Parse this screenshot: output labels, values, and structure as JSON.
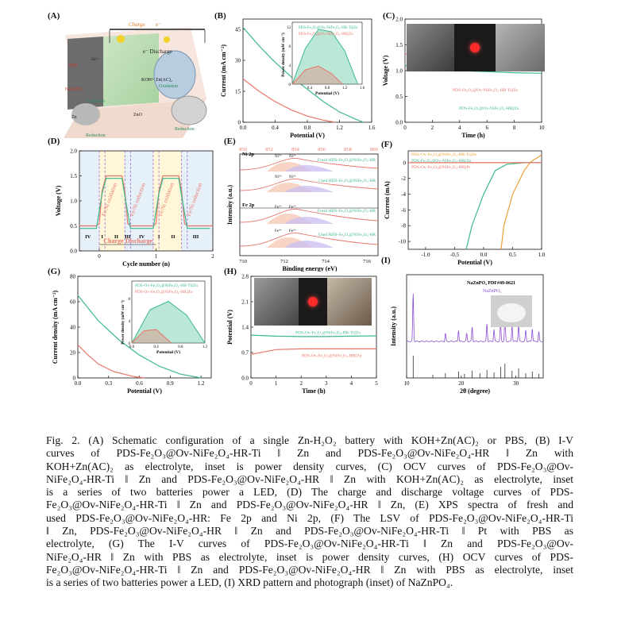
{
  "panels": {
    "A": {
      "label": "(A)",
      "texts": {
        "charge": "Charge",
        "charge_sym": "e⁻",
        "discharge_e": "e⁻ Discharge",
        "pbs": "PBS",
        "zn_ion": "Zn²⁺",
        "nazn": "NaZnPO₄",
        "electrolyte": "KOH+ Zn(AC)₂",
        "oxidation1": "Oxidation",
        "oxidation2": "Oxidation",
        "reduction1": "Reduction",
        "reduction2": "Reduction",
        "zn": "Zn",
        "zno": "ZnO"
      }
    },
    "B": {
      "label": "(B)",
      "legend": [
        "PDS-Fe₂O₃@Ov-NiFe₂O₄-HR-Ti||Zn",
        "PDS-Fe₂O₃@Ov-NiFe₂O₄-HR||Zn"
      ],
      "inset_ylabel": "Power density (mW cm⁻²)",
      "inset_xlabel": "Potential (V)"
    },
    "C": {
      "label": "(C)"
    },
    "D": {
      "label": "(D)",
      "annotations": [
        "Fe/Ni oxidation",
        "Fe/Ni reduction",
        "Fe/Ni oxidation",
        "Fe/Ni reduction"
      ],
      "stages": [
        "IV",
        "I",
        "II",
        "III",
        "IV",
        "I",
        "II",
        "III"
      ],
      "charge": "Charge",
      "discharge": "Discharge"
    },
    "E": {
      "label": "(E)",
      "ni_label": "Ni 2p",
      "fe_label": "Fe 2p",
      "ni_fresh": "Fresh HDS-Fe₂O₃@NiFe₂O₄-HR",
      "ni_used": "Used HDS-Fe₂O₃@NiFe₂O₄-HR",
      "fe_fresh": "Fresh HDS-Fe₂O₃@NiFe₂O₄-HR",
      "fe_used": "Used HDS-Fe₂O₃@NiFe₂O₄-HR",
      "peak_ni3": "Ni³⁺",
      "peak_ni2": "Ni²⁺",
      "peak_fe3": "Fe³⁺",
      "peak_fe2": "Fe²⁺",
      "top_ticks": [
        "850",
        "852",
        "854",
        "856",
        "858",
        "860"
      ],
      "bottom_ticks": [
        "710",
        "712",
        "714",
        "716"
      ],
      "xlabel": "Binding energy (eV)",
      "ylabel": "Intensity (a.u.)"
    },
    "F": {
      "label": "(F)",
      "legend": [
        "PDS-Ov-Fe₂O₃@NiFe₂O₄-HR-Ti||Zn",
        "PDS-Fe₂O₃@Ov-NiFe₂O₄-HR||Zn",
        "PDS-Ov-Fe₂O₃@NiFe₂O₄-HR||Pt"
      ]
    },
    "G": {
      "label": "(G)",
      "legend": [
        "PDS-Ov-Fe₂O₃@NiFe₂O₄-HR-Ti||Zn",
        "PDS-Ov-Fe₂O₃@NiFe₂O₄-HR||Zn"
      ],
      "inset_ylabel": "Power density (mW cm⁻²)",
      "inset_xlabel": "Potential (V)"
    },
    "H": {
      "label": "(H)",
      "curve_labels": [
        "PDS-Ov-Fe₂O₃@NiFe₂O₄-HR-Ti||Zn",
        "PDS-Ov-Fe₂O₃@NiFe₂O₄-HR||Zn"
      ]
    },
    "I": {
      "label": "(I)",
      "legend1": "NaZnPO₄ PDF#49-0621",
      "legend2": "NaZnPO₄"
    }
  },
  "chart_data": [
    {
      "id": "B",
      "type": "line",
      "xlabel": "Potential (V)",
      "ylabel": "Current (mA cm⁻²)",
      "xlim": [
        0.0,
        1.6
      ],
      "ylim": [
        0,
        50
      ],
      "xticks": [
        "0.0",
        "0.4",
        "0.8",
        "1.2",
        "1.6"
      ],
      "yticks": [
        "0",
        "15",
        "30",
        "45"
      ],
      "series": [
        {
          "name": "PDS-Fe₂O₃@Ov-NiFe₂O₄-HR-Ti||Zn",
          "color": "#3cb98a",
          "x": [
            0.0,
            0.2,
            0.4,
            0.6,
            0.8,
            1.0,
            1.2,
            1.4,
            1.5
          ],
          "y": [
            46,
            37,
            29,
            22,
            16,
            10,
            5,
            1.5,
            0
          ]
        },
        {
          "name": "PDS-Fe₂O₃@Ov-NiFe₂O₄-HR||Zn",
          "color": "#e8776b",
          "x": [
            0.0,
            0.2,
            0.4,
            0.6,
            0.8,
            1.0,
            1.15
          ],
          "y": [
            21,
            15,
            10,
            6,
            3,
            1,
            0
          ]
        }
      ]
    },
    {
      "id": "B-inset",
      "type": "area",
      "xlabel": "Potential (V)",
      "ylabel": "Power density (mW cm⁻²)",
      "xlim": [
        0,
        1.6
      ],
      "ylim": [
        0,
        13
      ],
      "xticks": [
        "0.4",
        "0.8",
        "1.2",
        "1.6"
      ],
      "yticks": [
        "0",
        "4",
        "8",
        "12"
      ],
      "series": [
        {
          "name": "HR-Ti",
          "color": "#3cb98a",
          "x": [
            0,
            0.3,
            0.6,
            0.9,
            1.2,
            1.5
          ],
          "y": [
            0,
            7.5,
            11.5,
            11,
            7,
            0
          ]
        },
        {
          "name": "HR",
          "color": "#e8776b",
          "x": [
            0,
            0.3,
            0.6,
            0.9,
            1.15
          ],
          "y": [
            0,
            3,
            3.8,
            2.2,
            0
          ]
        }
      ]
    },
    {
      "id": "C",
      "type": "line",
      "xlabel": "Time (h)",
      "ylabel": "Voltage (V)",
      "xlim": [
        0,
        10
      ],
      "ylim": [
        0,
        2.0
      ],
      "xticks": [
        "0",
        "2",
        "4",
        "6",
        "8",
        "10"
      ],
      "yticks": [
        "0.0",
        "0.5",
        "1.0",
        "1.5",
        "2.0"
      ],
      "series": [
        {
          "name": "PDS-Fe₂O₃@Ov-NiFe₂O₄-HR-Ti||Zn",
          "color": "#e8776b",
          "x": [
            0,
            2,
            4,
            6,
            8,
            10
          ],
          "y": [
            1.32,
            1.33,
            1.33,
            1.34,
            1.34,
            1.35
          ]
        },
        {
          "name": "PDS-Fe₂O₃@Ov-NiFe₂O₄-HR||Zn",
          "color": "#3cb98a",
          "x": [
            0,
            2,
            4,
            6,
            8,
            10
          ],
          "y": [
            1.1,
            1.05,
            1.0,
            0.98,
            0.96,
            0.95
          ]
        }
      ]
    },
    {
      "id": "D",
      "type": "line",
      "xlabel": "Cycle number (n)",
      "ylabel": "Voltage (V)",
      "xlim": [
        -0.35,
        2.0
      ],
      "ylim": [
        0.0,
        2.0
      ],
      "xticks": [
        "0",
        "1",
        "2"
      ],
      "yticks": [
        "0.0",
        "0.5",
        "1.0",
        "1.5",
        "2.0"
      ],
      "series": [
        {
          "name": "HR-Ti",
          "color": "#e8776b",
          "x": [
            -0.35,
            -0.05,
            0.0,
            0.05,
            0.12,
            0.4,
            0.45,
            0.5,
            0.55,
            0.62,
            0.9,
            0.95,
            1.0,
            1.05,
            1.12,
            1.4,
            1.45,
            1.5,
            1.55,
            1.62,
            1.9,
            1.95,
            2.0
          ],
          "y": [
            0.5,
            0.5,
            0.55,
            1.2,
            1.5,
            1.5,
            1.2,
            0.55,
            0.5,
            0.5,
            0.5,
            0.5,
            0.55,
            1.2,
            1.5,
            1.5,
            1.2,
            0.55,
            0.5,
            0.5,
            0.5,
            0.5,
            0.5
          ]
        },
        {
          "name": "HR",
          "color": "#3cb98a",
          "x": [
            -0.35,
            -0.05,
            0.05,
            0.12,
            0.4,
            0.45,
            0.55,
            0.9,
            0.95,
            1.05,
            1.12,
            1.4,
            1.45,
            1.55,
            1.95
          ],
          "y": [
            0.45,
            0.45,
            1.15,
            1.45,
            1.45,
            1.1,
            0.45,
            0.45,
            0.45,
            1.15,
            1.45,
            1.45,
            1.1,
            0.45,
            0.45
          ]
        }
      ]
    },
    {
      "id": "F",
      "type": "line",
      "xlabel": "Potential (V)",
      "ylabel": "Current (mA)",
      "xlim": [
        -1.3,
        1.0
      ],
      "ylim": [
        -11,
        1.5
      ],
      "xticks": [
        "-1.0",
        "-0.5",
        "0.0",
        "0.5",
        "1.0"
      ],
      "yticks": [
        "-10",
        "-8",
        "-6",
        "-4",
        "-2",
        "0"
      ],
      "series": [
        {
          "name": "PDS-Ov-Fe₂O₃@NiFe₂O₄-HR-Ti||Zn",
          "color": "#e8a13a",
          "x": [
            0.3,
            0.35,
            0.5,
            0.7,
            0.8,
            0.85,
            0.9,
            1.0
          ],
          "y": [
            -11,
            -8,
            -4,
            -1,
            0,
            0.3,
            0.5,
            1.0
          ]
        },
        {
          "name": "PDS-Fe₂O₃@Ov-NiFe₂O₄-HR||Zn",
          "color": "#3cb98a",
          "x": [
            -0.3,
            -0.2,
            0.0,
            0.2,
            0.4,
            0.7,
            1.0
          ],
          "y": [
            -11,
            -8,
            -4,
            -1,
            -0.2,
            0,
            0
          ]
        },
        {
          "name": "PDS-Ov-Fe₂O₃@NiFe₂O₄-HR||Pt",
          "color": "#e8776b",
          "x": [
            -1.3,
            -0.5,
            0.0,
            0.5,
            1.0
          ],
          "y": [
            0,
            0,
            0,
            0,
            0
          ]
        }
      ]
    },
    {
      "id": "G",
      "type": "line",
      "xlabel": "Potential (V)",
      "ylabel": "Current density (mA cm⁻²)",
      "xlim": [
        0.0,
        1.3
      ],
      "ylim": [
        0,
        80
      ],
      "xticks": [
        "0.0",
        "0.3",
        "0.6",
        "0.9",
        "1.2"
      ],
      "yticks": [
        "0",
        "20",
        "40",
        "60",
        "80"
      ],
      "series": [
        {
          "name": "PDS-Ov-Fe₂O₃@NiFe₂O₄-HR-Ti||Zn",
          "color": "#3cb98a",
          "x": [
            0.0,
            0.2,
            0.4,
            0.6,
            0.8,
            1.0,
            1.2
          ],
          "y": [
            65,
            45,
            30,
            18,
            9,
            3,
            0
          ]
        },
        {
          "name": "PDS-Ov-Fe₂O₃@NiFe₂O₄-HR||Zn",
          "color": "#e8776b",
          "x": [
            0.0,
            0.1,
            0.2,
            0.35,
            0.55,
            0.65
          ],
          "y": [
            26,
            18,
            11,
            5,
            1,
            0
          ]
        }
      ]
    },
    {
      "id": "G-inset",
      "type": "area",
      "xlabel": "Potential (V)",
      "ylabel": "Power density (mW cm⁻²)",
      "xlim": [
        0,
        1.2
      ],
      "ylim": [
        0,
        8
      ],
      "xticks": [
        "0.0",
        "0.4",
        "0.8",
        "1.2"
      ],
      "yticks": [
        "0",
        "4",
        "8"
      ],
      "series": [
        {
          "name": "HR-Ti",
          "color": "#3cb98a",
          "x": [
            0,
            0.3,
            0.6,
            0.9,
            1.2
          ],
          "y": [
            0,
            6,
            7.5,
            5,
            0
          ]
        },
        {
          "name": "HR",
          "color": "#e8776b",
          "x": [
            0,
            0.2,
            0.4,
            0.65
          ],
          "y": [
            0,
            2.2,
            2.4,
            0
          ]
        }
      ]
    },
    {
      "id": "H",
      "type": "line",
      "xlabel": "Time (h)",
      "ylabel": "Potential (V)",
      "xlim": [
        0,
        5
      ],
      "ylim": [
        0,
        2.8
      ],
      "xticks": [
        "0",
        "1",
        "2",
        "3",
        "4",
        "5"
      ],
      "yticks": [
        "0.0",
        "0.7",
        "1.4",
        "2.1",
        "2.8"
      ],
      "series": [
        {
          "name": "PDS-Ov-Fe₂O₃@NiFe₂O₄-HR-Ti||Zn",
          "color": "#3cb98a",
          "x": [
            0,
            1,
            2,
            3,
            4,
            5
          ],
          "y": [
            1.18,
            1.15,
            1.14,
            1.14,
            1.15,
            1.16
          ]
        },
        {
          "name": "PDS-Ov-Fe₂O₃@NiFe₂O₄-HR||Zn",
          "color": "#e8776b",
          "x": [
            0,
            1,
            2,
            3,
            4,
            5
          ],
          "y": [
            0.65,
            0.78,
            0.8,
            0.8,
            0.8,
            0.8
          ]
        }
      ]
    },
    {
      "id": "I",
      "type": "line",
      "xlabel": "2θ (degree)",
      "ylabel": "Intensity (a.u.)",
      "xlim": [
        10,
        35
      ],
      "xticks": [
        "10",
        "20",
        "30"
      ],
      "series": [
        {
          "name": "NaZnPO₄",
          "color": "#8a4fd6"
        }
      ]
    }
  ],
  "caption": [
    "Fig. 2. (A) Schematic configuration of a single Zn-H₂O₂ battery with KOH+Zn(AC)₂ or PBS, (B) I-V",
    "curves of PDS-Fe₂O₃@Ov-NiFe₂O₄-HR-Ti ‖ Zn and PDS-Fe₂O₃@Ov-NiFe₂O₄-HR ‖ Zn with",
    "KOH+Zn(AC)₂ as electrolyte, inset is power density curves, (C) OCV curves of PDS-Fe₂O₃@Ov-",
    "NiFe₂O₄-HR-Ti ‖ Zn and PDS-Fe₂O₃@Ov-NiFe₂O₄-HR ‖ Zn with KOH+Zn(AC)₂ as electrolyte, inset",
    "is a series of two batteries power a LED, (D) The charge and discharge voltage curves of PDS-",
    "Fe₂O₃@Ov-NiFe₂O₄-HR-Ti ‖ Zn and PDS-Fe₂O₃@Ov-NiFe₂O₄-HR ‖ Zn, (E) XPS spectra of fresh and",
    "used PDS-Fe₂O₃@Ov-NiFe₂O₄-HR: Fe 2p and Ni 2p, (F) The LSV of PDS-Fe₂O₃@Ov-NiFe₂O₄-HR-Ti",
    "‖ Zn, PDS-Fe₂O₃@Ov-NiFe₂O₄-HR ‖ Zn and PDS-Fe₂O₃@Ov-NiFe₂O₄-HR-Ti ‖ Pt with PBS as",
    "electrolyte, (G) The I-V curves of PDS-Fe₂O₃@Ov-NiFe₂O₄-HR-Ti ‖ Zn and PDS-Fe₂O₃@Ov-",
    "NiFe₂O₄-HR ‖ Zn with PBS as electrolyte, inset is power density curves, (H) OCV curves of PDS-",
    "Fe₂O₃@Ov-NiFe₂O₄-HR-Ti ‖ Zn and PDS-Fe₂O₃@Ov-NiFe₂O₄-HR ‖ Zn with PBS as electrolyte, inset",
    "is a series of two batteries power a LED, (I) XRD pattern and photograph (inset) of NaZnPO₄."
  ]
}
